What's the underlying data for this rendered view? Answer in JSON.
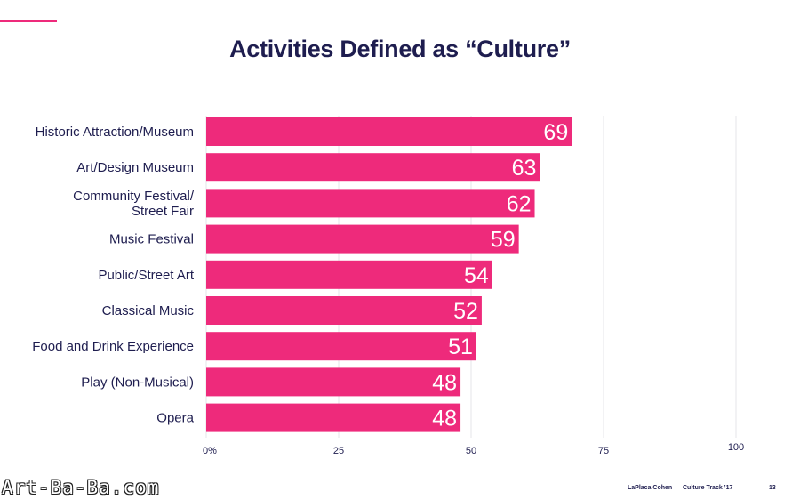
{
  "slide": {
    "title": "Activities Defined as “Culture”",
    "watermark": "Art-Ba-Ba.com",
    "footer_brand": "LaPlaca Cohen",
    "footer_report": "Culture Track ’17",
    "page_number": "13",
    "accent_color": "#ee2a7b",
    "title_color": "#1e1d4f"
  },
  "chart_data": {
    "type": "bar",
    "orientation": "horizontal",
    "title": "Activities Defined as “Culture”",
    "categories": [
      [
        "Historic Attraction/Museum"
      ],
      [
        "Art/Design Museum"
      ],
      [
        "Community Festival/",
        "Street Fair"
      ],
      [
        "Music Festival"
      ],
      [
        "Public/Street Art"
      ],
      [
        "Classical Music"
      ],
      [
        "Food and Drink Experience"
      ],
      [
        "Play (Non-Musical)"
      ],
      [
        "Opera"
      ]
    ],
    "values": [
      69,
      63,
      62,
      59,
      54,
      52,
      51,
      48,
      48
    ],
    "data_labels": [
      "69",
      "63",
      "62",
      "59",
      "54",
      "52",
      "51",
      "48",
      "48"
    ],
    "xlim": [
      0,
      100
    ],
    "ticks": [
      0,
      25,
      50,
      75,
      100
    ],
    "tick_labels": [
      "0%",
      "25",
      "50",
      "75",
      "100"
    ],
    "grid": true,
    "bar_color": "#ee2a7b",
    "label_color": "#1e1d4f"
  }
}
